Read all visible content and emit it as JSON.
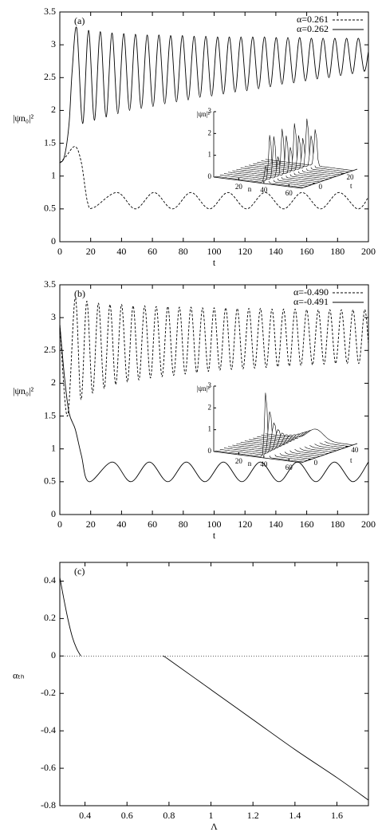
{
  "chart_data": [
    {
      "type": "line",
      "panel_label": "(a)",
      "xlabel": "t",
      "ylabel": "|ψn₀|²",
      "xlim": [
        0,
        200
      ],
      "xticks": [
        0,
        20,
        40,
        60,
        80,
        100,
        120,
        140,
        160,
        180,
        200
      ],
      "ylim": [
        0,
        3.5
      ],
      "yticks": [
        0,
        0.5,
        1,
        1.5,
        2,
        2.5,
        3,
        3.5
      ],
      "legend": "top-right",
      "series": [
        {
          "name": "α=0.261",
          "color": "#000000",
          "dash": "dashed",
          "x": [
            0,
            4,
            10,
            14,
            18,
            22,
            37,
            49,
            61,
            73,
            85,
            97,
            109,
            121,
            133,
            145,
            157,
            169,
            181,
            193,
            200
          ],
          "values": [
            1.2,
            1.3,
            1.45,
            1.2,
            0.6,
            0.52,
            0.75,
            0.5,
            0.75,
            0.5,
            0.75,
            0.5,
            0.75,
            0.5,
            0.75,
            0.5,
            0.75,
            0.5,
            0.75,
            0.5,
            0.68
          ]
        },
        {
          "name": "α=0.262",
          "color": "#000000",
          "dash": "solid",
          "x": [
            0,
            3,
            6,
            8,
            11,
            14.8,
            18.6,
            22.4,
            26.2,
            30,
            33.8,
            37.6,
            41.4,
            45.2,
            49,
            52.8,
            56.6,
            60.4,
            64.2,
            68,
            71.8,
            75.6,
            79.4,
            83.2,
            87,
            90.8,
            94.6,
            98.4,
            102.2,
            106,
            109.8,
            113.6,
            117.4,
            121.2,
            125,
            128.8,
            132.6,
            136.4,
            140.2,
            144,
            147.8,
            151.6,
            155.4,
            159.2,
            163,
            166.8,
            170.6,
            174.4,
            178.2,
            182,
            185.8,
            189.6,
            193.4,
            197.2,
            200
          ],
          "values": [
            1.2,
            1.3,
            1.8,
            2.6,
            3.25,
            1.8,
            3.22,
            1.85,
            3.2,
            1.9,
            3.18,
            1.95,
            3.17,
            2.0,
            3.16,
            2.03,
            3.15,
            2.06,
            3.15,
            2.1,
            3.14,
            2.13,
            3.14,
            2.16,
            3.13,
            2.2,
            3.13,
            2.22,
            3.12,
            2.25,
            3.12,
            2.28,
            3.12,
            2.3,
            3.12,
            2.33,
            3.12,
            2.36,
            3.11,
            2.4,
            3.11,
            2.42,
            3.11,
            2.45,
            3.1,
            2.48,
            3.1,
            2.5,
            3.1,
            2.53,
            3.1,
            2.56,
            3.1,
            2.6,
            2.9
          ]
        }
      ],
      "inset": {
        "ylabel": "|ψn|²",
        "xlabel": "n",
        "zlabel": "t",
        "ylim": [
          0,
          3
        ],
        "yticks": [
          0,
          1,
          2,
          3
        ],
        "xlim": [
          0,
          70
        ],
        "xticks": [
          20,
          40,
          60
        ],
        "zlim": [
          -10,
          30
        ],
        "zticks": [
          0,
          20
        ]
      }
    },
    {
      "type": "line",
      "panel_label": "(b)",
      "xlabel": "t",
      "ylabel": "|ψn₀|²",
      "xlim": [
        0,
        200
      ],
      "xticks": [
        0,
        20,
        40,
        60,
        80,
        100,
        120,
        140,
        160,
        180,
        200
      ],
      "ylim": [
        0,
        3.5
      ],
      "yticks": [
        0,
        0.5,
        1,
        1.5,
        2,
        2.5,
        3,
        3.5
      ],
      "legend": "top-right",
      "series": [
        {
          "name": "α=-0.490",
          "color": "#000000",
          "dash": "dashed",
          "x": [
            0,
            5,
            10,
            13.75,
            17.5,
            21.25,
            25,
            28.75,
            32.5,
            36.25,
            40,
            43.75,
            47.5,
            51.25,
            55,
            58.75,
            62.5,
            66.25,
            70,
            73.75,
            77.5,
            81.25,
            85,
            88.75,
            92.5,
            96.25,
            100,
            103.75,
            107.5,
            111.25,
            115,
            118.75,
            122.5,
            126.25,
            130,
            133.75,
            137.5,
            141.25,
            145,
            148.75,
            152.5,
            156.25,
            160,
            163.75,
            167.5,
            171.25,
            175,
            178.75,
            182.5,
            186.25,
            190,
            193.75,
            197.5,
            200
          ],
          "values": [
            2.9,
            1.5,
            3.3,
            1.75,
            3.25,
            1.85,
            3.22,
            1.92,
            3.2,
            1.98,
            3.2,
            2.02,
            3.18,
            2.05,
            3.18,
            2.08,
            3.17,
            2.1,
            3.17,
            2.12,
            3.16,
            2.14,
            3.16,
            2.16,
            3.15,
            2.18,
            3.15,
            2.2,
            3.15,
            2.21,
            3.14,
            2.22,
            3.14,
            2.23,
            3.14,
            2.24,
            3.13,
            2.25,
            3.13,
            2.26,
            3.13,
            2.27,
            3.12,
            2.28,
            3.12,
            2.29,
            3.12,
            2.3,
            3.12,
            2.3,
            3.12,
            2.3,
            3.12,
            2.6
          ]
        },
        {
          "name": "α=-0.491",
          "color": "#000000",
          "dash": "solid",
          "x": [
            0,
            3,
            6,
            10,
            14,
            19,
            34,
            46,
            58,
            70,
            82,
            94,
            106,
            118,
            130,
            142,
            154,
            166,
            178,
            190,
            200
          ],
          "values": [
            2.9,
            2.1,
            1.55,
            1.3,
            0.9,
            0.5,
            0.8,
            0.5,
            0.8,
            0.5,
            0.8,
            0.5,
            0.8,
            0.5,
            0.8,
            0.5,
            0.8,
            0.5,
            0.8,
            0.5,
            0.8
          ]
        }
      ],
      "inset": {
        "ylabel": "|ψn|²",
        "xlabel": "n",
        "zlabel": "t",
        "ylim": [
          0,
          3
        ],
        "yticks": [
          0,
          1,
          2,
          3
        ],
        "xlim": [
          0,
          70
        ],
        "xticks": [
          20,
          40,
          60
        ],
        "zlim": [
          -10,
          50
        ],
        "zticks": [
          0,
          40
        ]
      }
    },
    {
      "type": "line",
      "panel_label": "(c)",
      "xlabel": "Λ",
      "ylabel": "αₜₕ",
      "xlim": [
        0.28,
        1.75
      ],
      "xticks": [
        0.4,
        0.6,
        0.8,
        1,
        1.2,
        1.4,
        1.6
      ],
      "ylim": [
        -0.8,
        0.5
      ],
      "yticks": [
        -0.8,
        -0.6,
        -0.4,
        -0.2,
        0,
        0.2,
        0.4
      ],
      "hlines": [
        0
      ],
      "series": [
        {
          "color": "#000000",
          "dash": "solid",
          "x": [
            0.28,
            0.3,
            0.32,
            0.34,
            0.36,
            0.38,
            0.5,
            0.77,
            0.8,
            1.0,
            1.2,
            1.4,
            1.6,
            1.75
          ],
          "values": [
            0.42,
            0.3,
            0.19,
            0.1,
            0.04,
            0,
            null,
            0,
            -0.02,
            -0.18,
            -0.34,
            -0.5,
            -0.65,
            -0.77
          ]
        }
      ]
    }
  ]
}
